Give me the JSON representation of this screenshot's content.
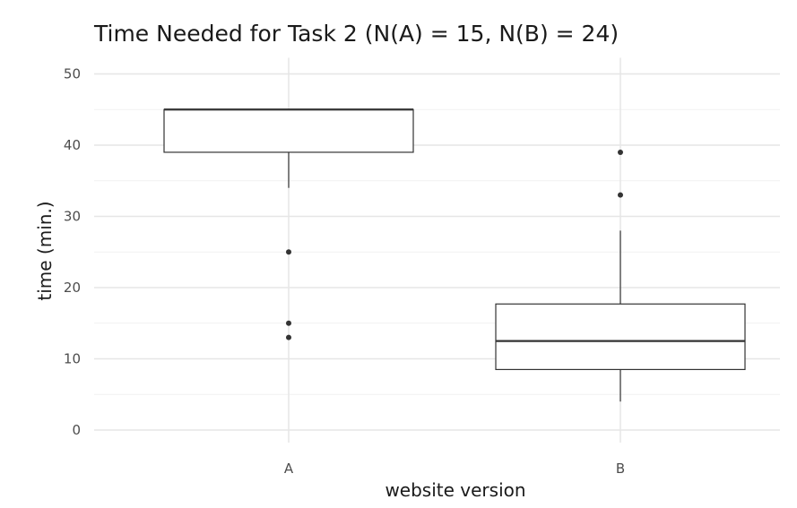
{
  "chart_data": {
    "type": "boxplot",
    "title": "Time Needed for Task 2 (N(A) = 15, N(B) = 24)",
    "xlabel": "website version",
    "ylabel": "time (min.)",
    "ylim": [
      -1,
      50
    ],
    "yticks": [
      0,
      10,
      20,
      30,
      40,
      50
    ],
    "grid": true,
    "categories": [
      "A",
      "B"
    ],
    "boxes": [
      {
        "category": "A",
        "whisker_low": 34,
        "q1": 39,
        "median": 45,
        "q3": 45,
        "whisker_high": 45,
        "outliers": [
          13,
          15,
          25
        ]
      },
      {
        "category": "B",
        "whisker_low": 4,
        "q1": 8.5,
        "median": 12.5,
        "q3": 17.7,
        "whisker_high": 28,
        "outliers": [
          33,
          39
        ]
      }
    ]
  }
}
